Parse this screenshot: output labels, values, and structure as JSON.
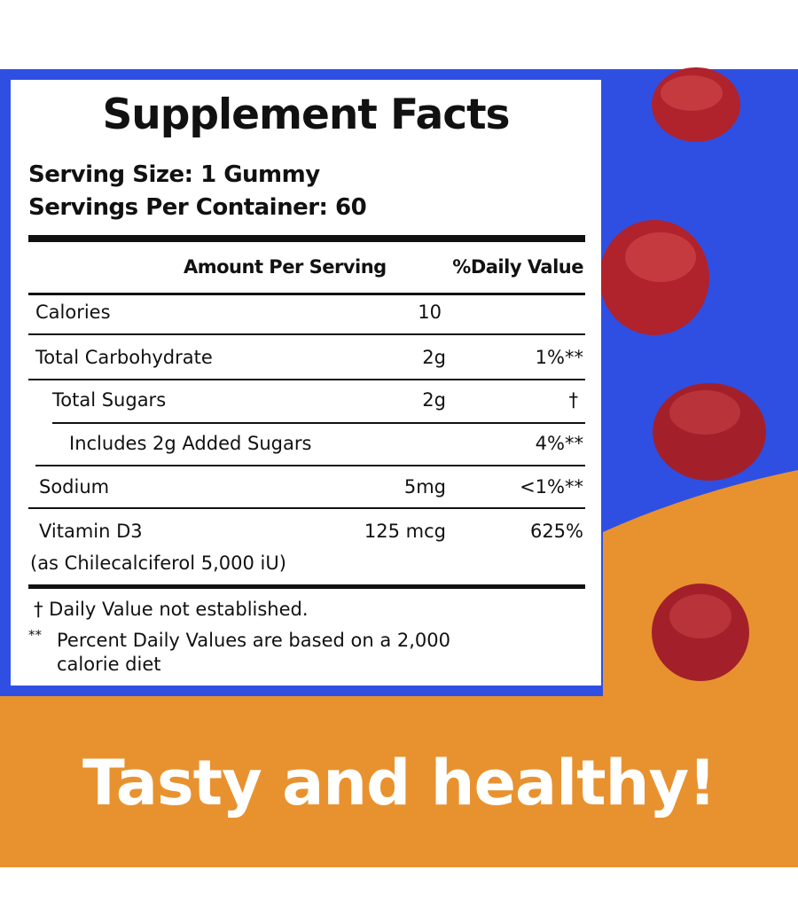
{
  "colors": {
    "blue": "#2f4fe3",
    "orange": "#e8922f",
    "gummy": "#b0222c",
    "text": "#111111"
  },
  "label": {
    "title": "Supplement Facts",
    "serving_size": "Serving Size: 1 Gummy",
    "servings_per_container": "Servings Per Container: 60",
    "header_amount": "Amount Per Serving",
    "header_dv": "%Daily Value",
    "rows": [
      {
        "name": "Calories",
        "amount": "10",
        "dv": ""
      },
      {
        "name": "Total Carbohydrate",
        "amount": "2g",
        "dv": "1%**"
      },
      {
        "name": "Total Sugars",
        "amount": "2g",
        "dv": "†"
      },
      {
        "name": "Includes 2g Added Sugars",
        "amount": "",
        "dv": "4%**"
      },
      {
        "name": "Sodium",
        "amount": "5mg",
        "dv": "<1%**"
      },
      {
        "name": "Vitamin D3",
        "amount": "125 mcg",
        "dv": "625%",
        "sub": "(as Chilecalciferol 5,000 iU)"
      }
    ],
    "footnote_dagger": "† Daily Value not established.",
    "footnote_stars_mark": "**",
    "footnote_stars": "Percent Daily Values are based on a 2,000",
    "footnote_stars_2": "calorie diet"
  },
  "tagline": "Tasty and healthy!"
}
